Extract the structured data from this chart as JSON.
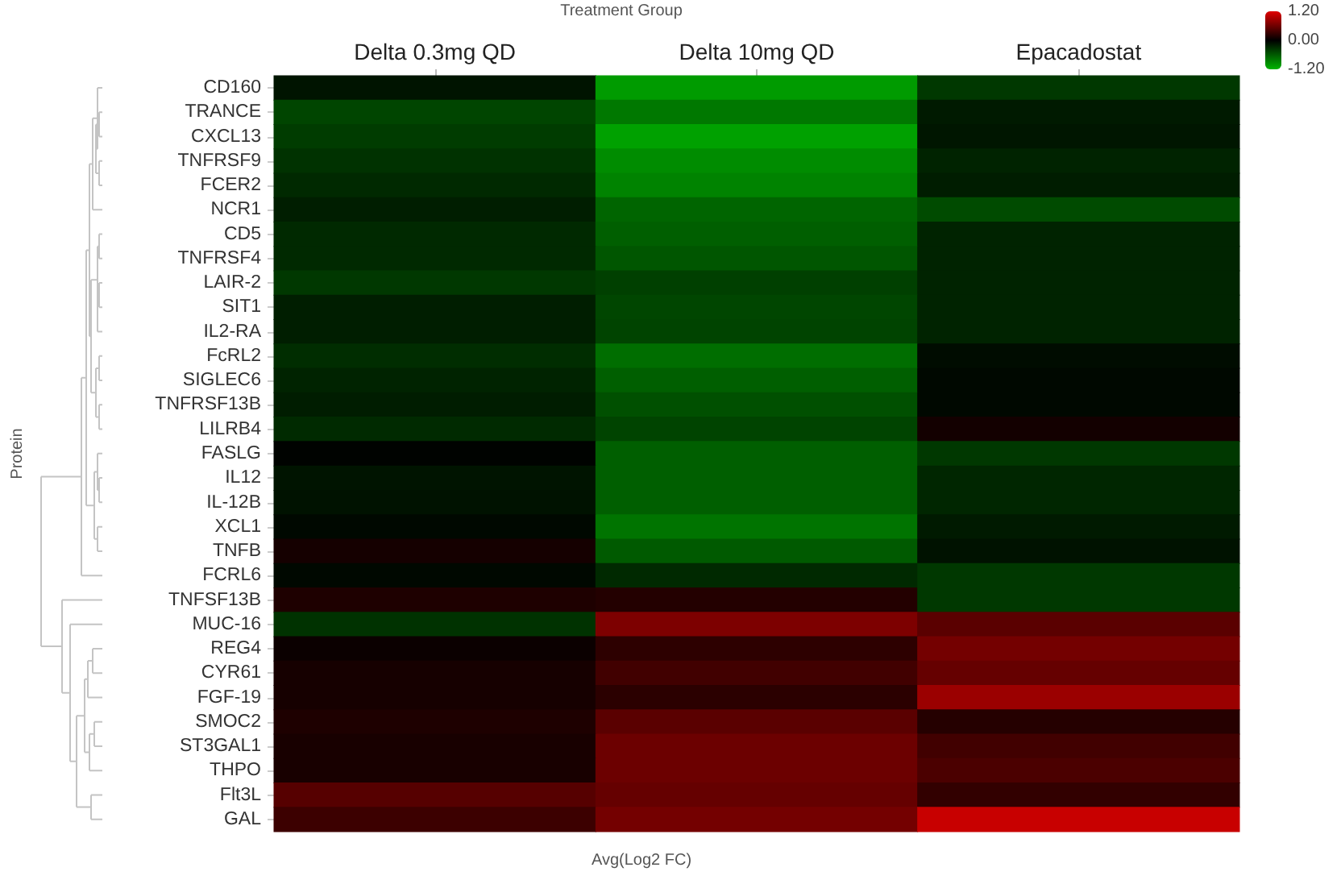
{
  "chart_data": {
    "type": "heatmap",
    "xlabel": "Treatment Group",
    "clabel": "Avg(Log2 FC)",
    "annotations": [
      "Protein"
    ],
    "categories": [
      "Delta 0.3mg QD",
      "Delta 10mg QD",
      "Epacadostat"
    ],
    "y_categories": [
      "CD160",
      "TRANCE",
      "CXCL13",
      "TNFRSF9",
      "FCER2",
      "NCR1",
      "CD5",
      "TNFRSF4",
      "LAIR-2",
      "SIT1",
      "IL2-RA",
      "FcRL2",
      "SIGLEC6",
      "TNFRSF13B",
      "LILRB4",
      "FASLG",
      "IL12",
      "IL-12B",
      "XCL1",
      "TNFB",
      "FCRL6",
      "TNFSF13B",
      "MUC-16",
      "REG4",
      "CYR61",
      "FGF-19",
      "SMOC2",
      "ST3GAL1",
      "THPO",
      "Flt3L",
      "GAL"
    ],
    "cells": [
      [
        -0.13,
        -1.03,
        -0.37
      ],
      [
        -0.46,
        -0.8,
        -0.17
      ],
      [
        -0.4,
        -1.07,
        -0.15
      ],
      [
        -0.33,
        -0.93,
        -0.23
      ],
      [
        -0.27,
        -0.87,
        -0.19
      ],
      [
        -0.2,
        -0.67,
        -0.5
      ],
      [
        -0.27,
        -0.63,
        -0.23
      ],
      [
        -0.27,
        -0.57,
        -0.23
      ],
      [
        -0.37,
        -0.43,
        -0.23
      ],
      [
        -0.2,
        -0.47,
        -0.23
      ],
      [
        -0.2,
        -0.45,
        -0.23
      ],
      [
        -0.3,
        -0.73,
        -0.08
      ],
      [
        -0.23,
        -0.63,
        -0.05
      ],
      [
        -0.19,
        -0.53,
        -0.05
      ],
      [
        -0.28,
        -0.45,
        0.1
      ],
      [
        -0.02,
        -0.63,
        -0.37
      ],
      [
        -0.13,
        -0.63,
        -0.25
      ],
      [
        -0.12,
        -0.63,
        -0.25
      ],
      [
        -0.05,
        -0.77,
        -0.17
      ],
      [
        0.11,
        -0.6,
        -0.12
      ],
      [
        -0.05,
        -0.27,
        -0.37
      ],
      [
        0.16,
        0.19,
        -0.37
      ],
      [
        -0.33,
        0.67,
        0.48
      ],
      [
        0.06,
        0.24,
        0.62
      ],
      [
        0.12,
        0.35,
        0.54
      ],
      [
        0.12,
        0.23,
        0.83
      ],
      [
        0.16,
        0.48,
        0.2
      ],
      [
        0.13,
        0.58,
        0.35
      ],
      [
        0.13,
        0.58,
        0.4
      ],
      [
        0.46,
        0.54,
        0.27
      ],
      [
        0.32,
        0.62,
        1.07
      ]
    ],
    "clim": [
      -1.2,
      1.2
    ],
    "cticks": [
      {
        "value": 1.2,
        "label": "1.20"
      },
      {
        "value": 0,
        "label": "0.00"
      },
      {
        "value": -1.2,
        "label": "-1.20"
      }
    ]
  }
}
